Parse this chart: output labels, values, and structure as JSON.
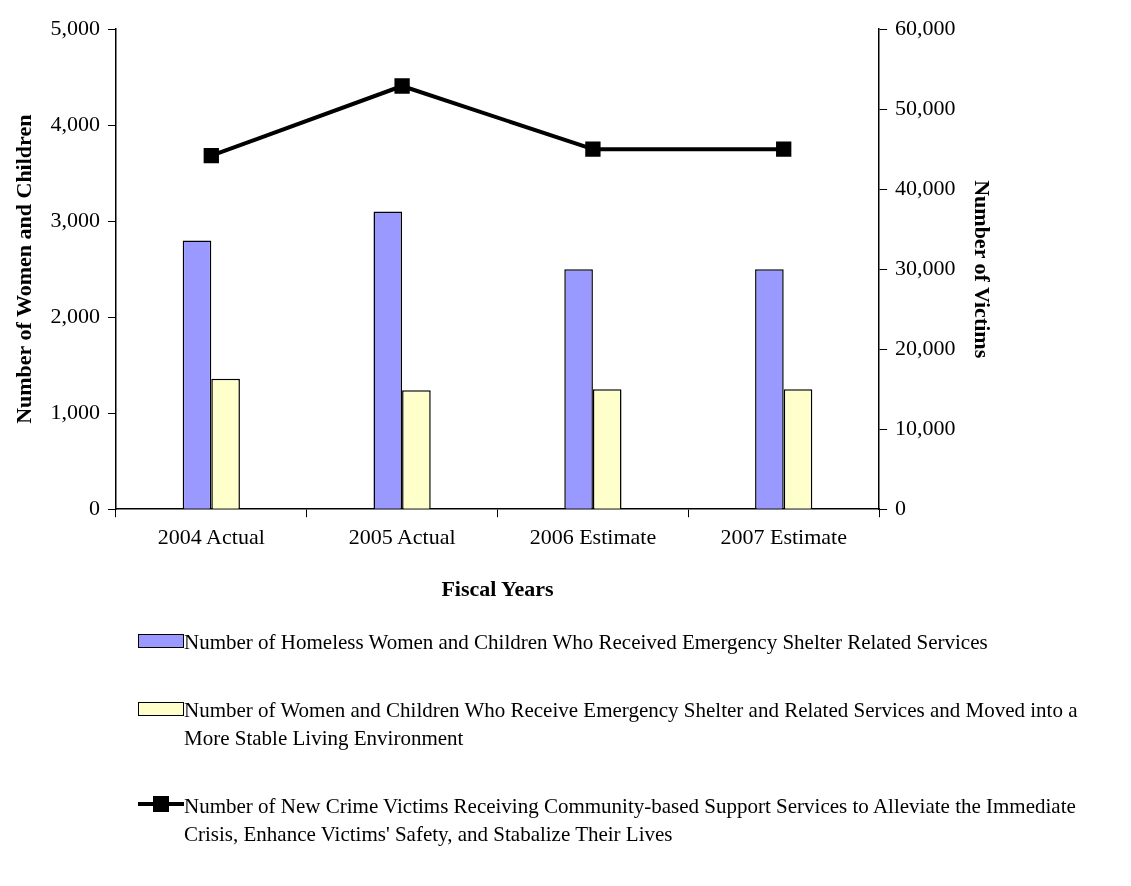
{
  "chart_data": {
    "type": "bar",
    "xlabel": "Fiscal Years",
    "ylabel": "Number of Women and Children",
    "y2label": "Number of Victims",
    "categories": [
      "2004 Actual",
      "2005 Actual",
      "2006 Estimate",
      "2007 Estimate"
    ],
    "series": [
      {
        "name": "Number of Homeless Women and Children Who Received Emergency Shelter Related Services",
        "color": "#9999ff",
        "values": [
          2800,
          3100,
          2500,
          2500
        ]
      },
      {
        "name": "Number of Women and Children Who Receive Emergency Shelter and Related Services and Moved into a More Stable Living Environment",
        "color": "#ffffcc",
        "values": [
          1360,
          1240,
          1250,
          1250
        ]
      },
      {
        "name": "Number of New Crime Victims Receiving Community-based Support Services to Alleviate the Immediate Crisis, Enhance Victims' Safety, and Stabalize Their Lives",
        "color": "#000000",
        "type": "line",
        "axis": "y2",
        "marker": "square",
        "values": [
          44200,
          52900,
          45000,
          45000
        ]
      }
    ],
    "ylim": [
      0,
      5000
    ],
    "yticks": [
      0,
      {
        "value": 1000,
        "label": "1,000"
      },
      {
        "value": 2000,
        "label": "2,000"
      },
      {
        "value": 3000,
        "label": "3,000"
      },
      {
        "value": 4000,
        "label": "4,000"
      },
      {
        "value": 5000,
        "label": "5,000"
      }
    ],
    "y2lim": [
      0,
      60000
    ],
    "y2ticks": [
      0,
      {
        "value": 10000,
        "label": "10,000"
      },
      {
        "value": 20000,
        "label": "20,000"
      },
      {
        "value": 30000,
        "label": "30,000"
      },
      {
        "value": 40000,
        "label": "40,000"
      },
      {
        "value": 50000,
        "label": "50,000"
      },
      {
        "value": 60000,
        "label": "60,000"
      }
    ],
    "grid": false,
    "legend": "bottom"
  }
}
